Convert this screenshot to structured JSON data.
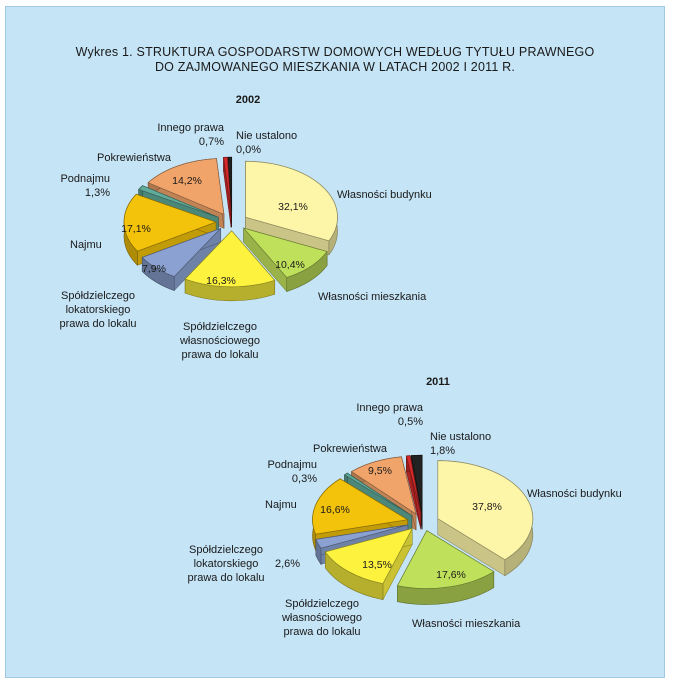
{
  "chart_title": {
    "line1": "Wykres 1. STRUKTURA GOSPODARSTW DOMOWYCH WEDŁUG TYTUŁU PRAWNEGO",
    "line2": "DO ZAJMOWANEGO MIESZKANIA W LATACH 2002 I 2011 R."
  },
  "chart_data": [
    {
      "type": "pie",
      "title": "2002",
      "slices": [
        {
          "name": "Własności budynku",
          "value": 32.1,
          "value_label": "32,1%",
          "color": "#fdf5a8"
        },
        {
          "name": "Własności mieszkania",
          "value": 10.4,
          "value_label": "10,4%",
          "color": "#bfe05a"
        },
        {
          "name": "Spółdzielczego własnościowego prawa do lokalu",
          "value": 16.3,
          "value_label": "16,3%",
          "color": "#fdf33f"
        },
        {
          "name": "Spółdzielczego lokatorskiego prawa do lokalu",
          "value": 7.9,
          "value_label": "7,9%",
          "color": "#8aa1d1"
        },
        {
          "name": "Najmu",
          "value": 17.1,
          "value_label": "17,1%",
          "color": "#f3c20a"
        },
        {
          "name": "Podnajmu",
          "value": 1.3,
          "value_label": "1,3%",
          "color": "#5faa99"
        },
        {
          "name": "Pokrewieństwa",
          "value": 14.2,
          "value_label": "14,2%",
          "color": "#f0a46a"
        },
        {
          "name": "Innego prawa",
          "value": 0.7,
          "value_label": "0,7%",
          "color": "#d42a2a"
        },
        {
          "name": "Nie ustalono",
          "value": 0.0,
          "value_label": "0,0%",
          "color": "#222222"
        }
      ]
    },
    {
      "type": "pie",
      "title": "2011",
      "slices": [
        {
          "name": "Własności budynku",
          "value": 37.8,
          "value_label": "37,8%",
          "color": "#fdf5a8"
        },
        {
          "name": "Własności mieszkania",
          "value": 17.6,
          "value_label": "17,6%",
          "color": "#bfe05a"
        },
        {
          "name": "Spółdzielczego własnościowego prawa do lokalu",
          "value": 13.5,
          "value_label": "13,5%",
          "color": "#fdf33f"
        },
        {
          "name": "Spółdzielczego lokatorskiego prawa do lokalu",
          "value": 2.6,
          "value_label": "2,6%",
          "color": "#8aa1d1"
        },
        {
          "name": "Najmu",
          "value": 16.6,
          "value_label": "16,6%",
          "color": "#f3c20a"
        },
        {
          "name": "Podnajmu",
          "value": 0.3,
          "value_label": "0,3%",
          "color": "#5faa99"
        },
        {
          "name": "Pokrewieństwa",
          "value": 9.5,
          "value_label": "9,5%",
          "color": "#f0a46a"
        },
        {
          "name": "Innego prawa",
          "value": 0.5,
          "value_label": "0,5%",
          "color": "#d42a2a"
        },
        {
          "name": "Nie ustalono",
          "value": 1.8,
          "value_label": "1,8%",
          "color": "#222222"
        }
      ]
    }
  ],
  "labels_2002": {
    "budynku": "Własności budynku",
    "mieszkania": "Własności mieszkania",
    "wlasn": [
      "Spółdzielczego",
      "własnościowego",
      "prawa do lokalu"
    ],
    "lokat": [
      "Spółdzielczego",
      "lokatorskiego",
      "prawa do lokalu"
    ],
    "najmu": "Najmu",
    "podnajmu": "Podnajmu",
    "pokrew": "Pokrewieństwa",
    "innego": "Innego prawa",
    "nieust": "Nie ustalono"
  },
  "labels_2011": {
    "budynku": "Własności budynku",
    "mieszkania": "Własności mieszkania",
    "wlasn": [
      "Spółdzielczego",
      "własnościowego",
      "prawa do lokalu"
    ],
    "lokat": [
      "Spółdzielczego",
      "lokatorskiego",
      "prawa do lokalu"
    ],
    "najmu": "Najmu",
    "podnajmu": "Podnajmu",
    "pokrew": "Pokrewieństwa",
    "innego": "Innego prawa",
    "nieust": "Nie ustalono"
  }
}
